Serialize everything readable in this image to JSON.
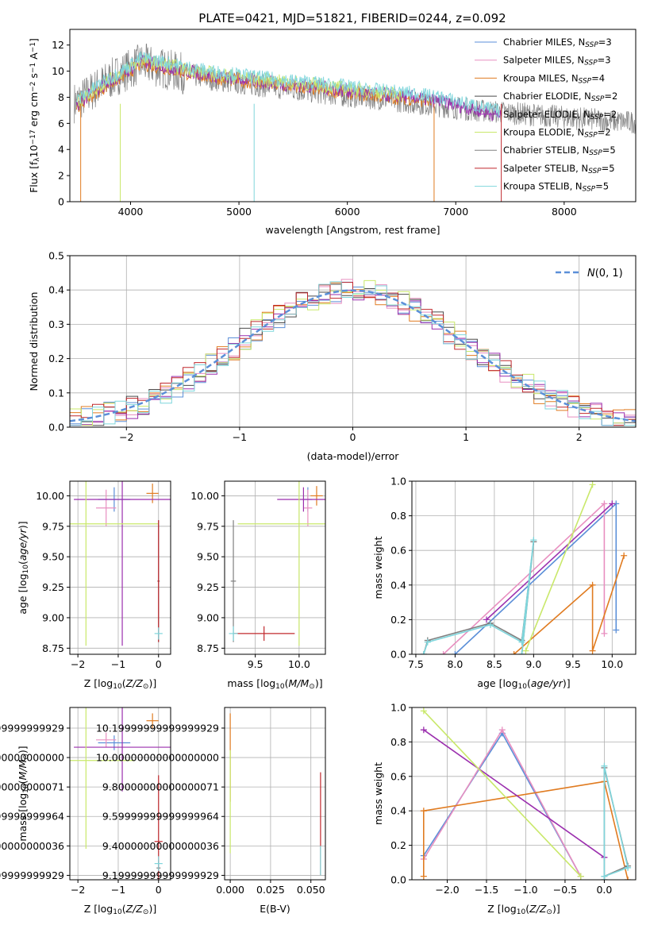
{
  "figure": {
    "title": "PLATE=0421, MJD=51821, FIBERID=0244, z=0.092"
  },
  "legend_colors": {
    "Chabrier MILES": "#5b8fd8",
    "Salpeter MILES": "#e88fc0",
    "Kroupa MILES": "#e07b20",
    "Chabrier ELODIE": "#4a4a4a",
    "Salpeter ELODIE": "#9b2fae",
    "Kroupa ELODIE": "#c9e86a",
    "Chabrier STELIB": "#808080",
    "Salpeter STELIB": "#c0282d",
    "Kroupa STELIB": "#7fd6dc"
  },
  "chart_data": [
    {
      "id": "spectrum",
      "type": "line",
      "xlabel": "wavelength [Angstrom, rest frame]",
      "ylabel": "Flux [f_λ 10^-17 erg cm^-2 s^-1 A^-1]",
      "xlim": [
        3440,
        8660
      ],
      "ylim": [
        0,
        13.2
      ],
      "xticks": [
        4000,
        5000,
        6000,
        7000,
        8000
      ],
      "yticks": [
        0,
        2,
        4,
        6,
        8,
        10,
        12
      ],
      "grid": false,
      "legend_position": "top-right",
      "legend": [
        {
          "name": "Chabrier MILES",
          "nssp": "3"
        },
        {
          "name": "Salpeter MILES",
          "nssp": "3"
        },
        {
          "name": "Kroupa MILES",
          "nssp": "4"
        },
        {
          "name": "Chabrier ELODIE",
          "nssp": "2"
        },
        {
          "name": "Salpeter ELODIE",
          "nssp": "2"
        },
        {
          "name": "Kroupa ELODIE",
          "nssp": "2"
        },
        {
          "name": "Chabrier STELIB",
          "nssp": "5"
        },
        {
          "name": "Salpeter STELIB",
          "nssp": "5"
        },
        {
          "name": "Kroupa STELIB",
          "nssp": "5"
        }
      ],
      "data_continuum": {
        "x": [
          3500,
          3700,
          3900,
          4100,
          4300,
          4500,
          4800,
          5100,
          5400,
          5700,
          6000,
          6300,
          6600,
          6900,
          7200,
          7500,
          7800,
          8100,
          8400,
          8600
        ],
        "y": [
          7.6,
          8.8,
          9.8,
          10.6,
          10.2,
          9.8,
          9.3,
          9.0,
          8.7,
          8.4,
          8.1,
          7.9,
          7.6,
          7.3,
          7.0,
          6.8,
          6.6,
          6.4,
          6.2,
          6.1
        ]
      },
      "model_continuum": {
        "x": [
          3500,
          3700,
          3900,
          4100,
          4300,
          4500,
          4800,
          5100,
          5400,
          5700,
          6000,
          6300,
          6600,
          6900,
          7200,
          7400
        ],
        "y": [
          7.5,
          8.7,
          9.7,
          10.8,
          10.5,
          10.1,
          9.7,
          9.4,
          9.1,
          8.9,
          8.6,
          8.3,
          8.1,
          7.7,
          7.1,
          6.7
        ]
      }
    },
    {
      "id": "residuals",
      "type": "histogram",
      "xlabel": "(data-model)/error",
      "ylabel": "Normed distribution",
      "xlim": [
        -2.5,
        2.5
      ],
      "ylim": [
        0,
        0.5
      ],
      "xticks": [
        -2,
        -1,
        0,
        1,
        2
      ],
      "yticks": [
        0.0,
        0.1,
        0.2,
        0.3,
        0.4,
        0.5
      ],
      "grid": true,
      "legend_position": "top-right",
      "legend": [
        "N(0,1)"
      ],
      "bin_width": 0.1
    },
    {
      "id": "age-vs-Z",
      "type": "errorbar",
      "xlabel": "Z [log10(Z/Z⊙)]",
      "ylabel": "age  [log10(age/yr)]",
      "xlim": [
        -2.2,
        0.3
      ],
      "ylim": [
        8.7,
        10.12
      ],
      "xticks": [
        -2,
        -1,
        0
      ],
      "yticks": [
        8.75,
        9.0,
        9.25,
        9.5,
        9.75,
        10.0
      ],
      "grid": true,
      "points": [
        {
          "model": "Chabrier MILES",
          "x": -1.1,
          "y": 9.97,
          "xerr": 0.4,
          "yerr": 0.1
        },
        {
          "model": "Salpeter MILES",
          "x": -1.3,
          "y": 9.9,
          "xerr": 0.25,
          "yerr": 0.15
        },
        {
          "model": "Kroupa MILES",
          "x": -0.15,
          "y": 10.02,
          "xerr": 0.15,
          "yerr": 0.08
        },
        {
          "model": "Salpeter ELODIE",
          "x": -0.9,
          "y": 9.97,
          "xerr": 1.2,
          "yerr": 1.2
        },
        {
          "model": "Kroupa ELODIE",
          "x": -1.8,
          "y": 9.77,
          "xerr": 1.8,
          "yerr": 1.0
        },
        {
          "model": "Chabrier STELIB",
          "x": 0.0,
          "y": 9.3,
          "xerr": 0.03,
          "yerr": 0.5
        },
        {
          "model": "Salpeter STELIB",
          "x": 0.0,
          "y": 9.3,
          "xerr": 0.02,
          "yerr": 0.5
        },
        {
          "model": "Kroupa STELIB",
          "x": 0.0,
          "y": 8.87,
          "xerr": 0.1,
          "yerr": 0.05
        }
      ]
    },
    {
      "id": "age-vs-mass",
      "type": "errorbar",
      "xlabel": "mass [log10(M/M⊙)]",
      "ylabel": "",
      "xlim": [
        9.15,
        10.3
      ],
      "ylim": [
        8.7,
        10.12
      ],
      "xticks": [
        9.5,
        10.0
      ],
      "yticks": [
        8.75,
        9.0,
        9.25,
        9.5,
        9.75,
        10.0
      ],
      "grid": true,
      "points": [
        {
          "model": "Chabrier MILES",
          "x": 10.1,
          "y": 9.97,
          "xerr": 0.05,
          "yerr": 0.1
        },
        {
          "model": "Salpeter MILES",
          "x": 10.1,
          "y": 9.9,
          "xerr": 0.05,
          "yerr": 0.15
        },
        {
          "model": "Kroupa MILES",
          "x": 10.2,
          "y": 10.0,
          "xerr": 0.07,
          "yerr": 0.08
        },
        {
          "model": "Salpeter ELODIE",
          "x": 10.05,
          "y": 9.97,
          "xerr": 0.3,
          "yerr": 0.1
        },
        {
          "model": "Kroupa ELODIE",
          "x": 10.0,
          "y": 9.77,
          "xerr": 0.7,
          "yerr": 1.0
        },
        {
          "model": "Chabrier STELIB",
          "x": 9.25,
          "y": 9.3,
          "xerr": 0.03,
          "yerr": 0.5
        },
        {
          "model": "Salpeter STELIB",
          "x": 9.6,
          "y": 8.87,
          "xerr": 0.35,
          "yerr": 0.06
        },
        {
          "model": "Kroupa STELIB",
          "x": 9.25,
          "y": 8.87,
          "xerr": 0.05,
          "yerr": 0.06
        }
      ]
    },
    {
      "id": "weight-vs-age",
      "type": "line",
      "xlabel": "age  [log10(age/yr)]",
      "ylabel": "mass weight",
      "xlim": [
        7.45,
        10.3
      ],
      "ylim": [
        0,
        1.0
      ],
      "xticks": [
        7.5,
        8.0,
        8.5,
        9.0,
        9.5,
        10.0
      ],
      "yticks": [
        0.0,
        0.2,
        0.4,
        0.6,
        0.8,
        1.0
      ],
      "grid": true,
      "series": [
        {
          "model": "Chabrier MILES",
          "x": [
            8.0,
            10.05,
            10.05
          ],
          "y": [
            0.0,
            0.87,
            0.14
          ]
        },
        {
          "model": "Salpeter MILES",
          "x": [
            7.85,
            9.9,
            9.9
          ],
          "y": [
            0.0,
            0.87,
            0.12
          ]
        },
        {
          "model": "Kroupa MILES",
          "x": [
            8.75,
            9.75,
            9.75,
            10.15
          ],
          "y": [
            0.0,
            0.4,
            0.02,
            0.57
          ]
        },
        {
          "model": "Salpeter ELODIE",
          "x": [
            8.4,
            10.0
          ],
          "y": [
            0.2,
            0.87
          ]
        },
        {
          "model": "Kroupa ELODIE",
          "x": [
            8.9,
            9.75
          ],
          "y": [
            0.02,
            0.98
          ]
        },
        {
          "model": "Chabrier STELIB",
          "x": [
            7.6,
            7.65,
            8.45,
            8.85,
            9.0,
            8.85
          ],
          "y": [
            0.0,
            0.08,
            0.18,
            0.08,
            0.65,
            0.0
          ]
        },
        {
          "model": "Kroupa STELIB",
          "x": [
            7.6,
            7.65,
            8.45,
            8.85,
            9.0,
            8.85
          ],
          "y": [
            0.0,
            0.07,
            0.17,
            0.07,
            0.66,
            0.0
          ]
        }
      ]
    },
    {
      "id": "mass-vs-Z",
      "type": "errorbar",
      "xlabel": "Z [log10(Z/Z⊙)]",
      "ylabel": "mass [log10(M/M⊙)]",
      "xlim": [
        -2.2,
        0.3
      ],
      "ylim": [
        9.17,
        10.34
      ],
      "xticks": [
        -2,
        -1,
        0
      ],
      "yticks": [
        9.2,
        9.4,
        9.6,
        9.8,
        10.0,
        10.2
      ],
      "grid": true,
      "points": [
        {
          "model": "Chabrier MILES",
          "x": -1.1,
          "y": 10.1,
          "xerr": 0.4,
          "yerr": 0.05
        },
        {
          "model": "Salpeter MILES",
          "x": -1.3,
          "y": 10.12,
          "xerr": 0.25,
          "yerr": 0.05
        },
        {
          "model": "Kroupa MILES",
          "x": -0.15,
          "y": 10.25,
          "xerr": 0.15,
          "yerr": 0.05
        },
        {
          "model": "Salpeter ELODIE",
          "x": -0.9,
          "y": 10.07,
          "xerr": 1.2,
          "yerr": 0.3
        },
        {
          "model": "Kroupa ELODIE",
          "x": -1.8,
          "y": 9.98,
          "xerr": 1.2,
          "yerr": 0.6
        },
        {
          "model": "Chabrier STELIB",
          "x": 0.0,
          "y": 9.25,
          "xerr": 0.05,
          "yerr": 0.05
        },
        {
          "model": "Salpeter STELIB",
          "x": 0.0,
          "y": 9.43,
          "xerr": 0.1,
          "yerr": 0.45
        },
        {
          "model": "Kroupa STELIB",
          "x": 0.0,
          "y": 9.28,
          "xerr": 0.1,
          "yerr": 0.05
        }
      ]
    },
    {
      "id": "mass-vs-ebv",
      "type": "errorbar",
      "xlabel": "E(B-V)",
      "ylabel": "",
      "xlim": [
        -0.0035,
        0.059
      ],
      "ylim": [
        9.17,
        10.34
      ],
      "xticks": [
        0.0,
        0.025,
        0.05
      ],
      "yticks": [
        9.2,
        9.4,
        9.6,
        9.8,
        10.0,
        10.2
      ],
      "grid": true,
      "points": [
        {
          "model": "Kroupa MILES",
          "x": 0.0,
          "y": 10.0,
          "xerr": 0.0,
          "yerr": 0.3
        },
        {
          "model": "Kroupa ELODIE",
          "x": 0.0,
          "y": 9.7,
          "xerr": 0.0,
          "yerr": 0.35
        },
        {
          "model": "Salpeter STELIB",
          "x": 0.056,
          "y": 9.55,
          "xerr": 0.0,
          "yerr": 0.35
        },
        {
          "model": "Kroupa STELIB",
          "x": 0.056,
          "y": 9.3,
          "xerr": 0.0,
          "yerr": 0.1
        }
      ]
    },
    {
      "id": "weight-vs-Z",
      "type": "line",
      "xlabel": "Z [log10(Z/Z⊙)]",
      "ylabel": "mass weight",
      "xlim": [
        -2.45,
        0.4
      ],
      "ylim": [
        0,
        1.0
      ],
      "xticks": [
        -2.0,
        -1.5,
        -1.0,
        -0.5,
        0.0
      ],
      "yticks": [
        0.0,
        0.2,
        0.4,
        0.6,
        0.8,
        1.0
      ],
      "grid": true,
      "series": [
        {
          "model": "Chabrier MILES",
          "x": [
            -2.3,
            -1.3,
            -0.3
          ],
          "y": [
            0.14,
            0.85,
            0.02
          ]
        },
        {
          "model": "Salpeter MILES",
          "x": [
            -2.3,
            -1.3,
            -0.3
          ],
          "y": [
            0.12,
            0.87,
            0.02
          ]
        },
        {
          "model": "Kroupa MILES",
          "x": [
            -2.3,
            -2.3,
            0.0,
            0.3
          ],
          "y": [
            0.02,
            0.4,
            0.57,
            0.0
          ]
        },
        {
          "model": "Salpeter ELODIE",
          "x": [
            -2.3,
            0.0
          ],
          "y": [
            0.87,
            0.13
          ]
        },
        {
          "model": "Kroupa ELODIE",
          "x": [
            -2.3,
            -0.3
          ],
          "y": [
            0.98,
            0.02
          ]
        },
        {
          "model": "Chabrier STELIB",
          "x": [
            0.0,
            0.0,
            0.3,
            0.0
          ],
          "y": [
            0.0,
            0.65,
            0.08,
            0.02
          ]
        },
        {
          "model": "Kroupa STELIB",
          "x": [
            0.0,
            0.0,
            0.3,
            0.0
          ],
          "y": [
            0.0,
            0.66,
            0.07,
            0.02
          ]
        }
      ]
    }
  ]
}
